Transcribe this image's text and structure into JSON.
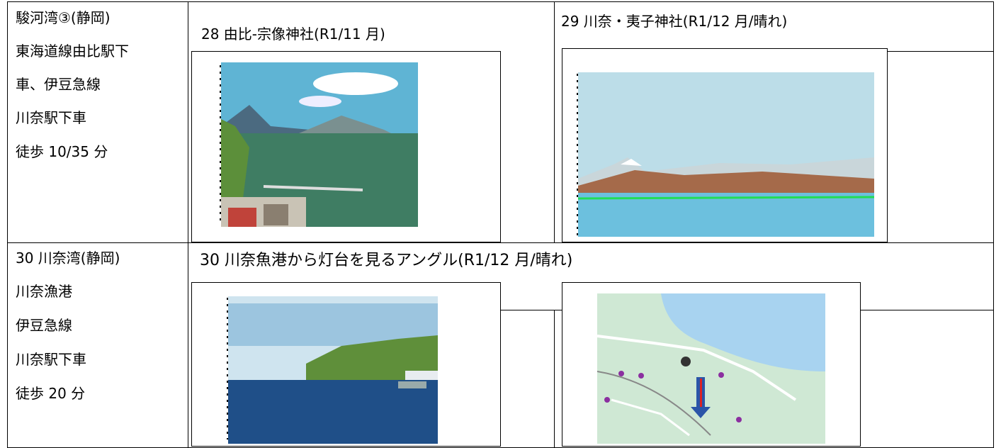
{
  "table": {
    "rows": [
      {
        "place": [
          "駿河湾③(静岡)",
          "東海道線由比駅下",
          "車、伊豆急線",
          "川奈駅下車",
          "徒歩 10/35 分"
        ],
        "captions": [
          "28 由比-宗像神社(R1/11 月)",
          "29 川奈・夷子神社(R1/12 月/晴れ)"
        ]
      },
      {
        "place": [
          "30 川奈湾(静岡)",
          "川奈漁港",
          "伊豆急線",
          "川奈駅下車",
          "徒歩 20 分"
        ],
        "captions": [
          "30 川奈魚港から灯台を見るアングル(R1/12 月/晴れ)"
        ]
      }
    ]
  }
}
